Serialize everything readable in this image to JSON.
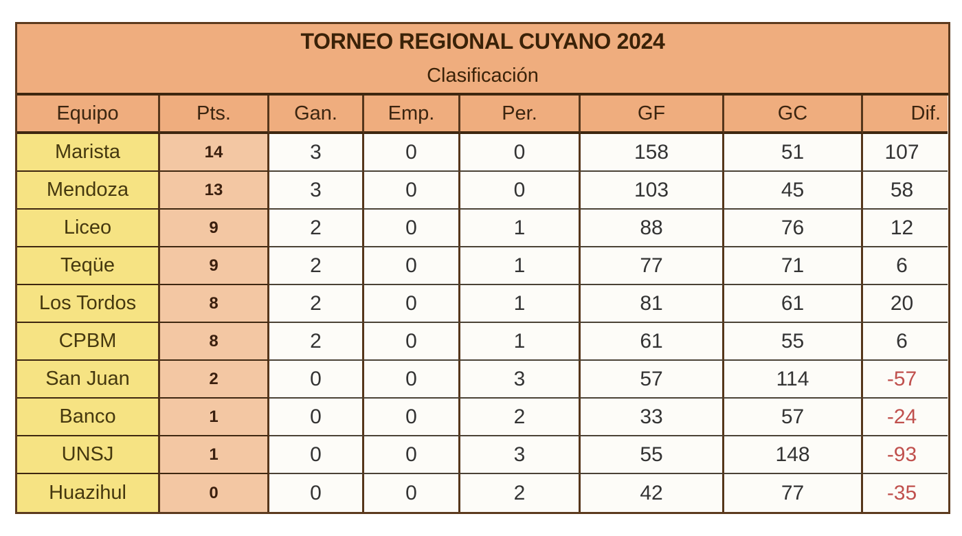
{
  "header": {
    "title": "TORNEO REGIONAL CUYANO 2024",
    "subtitle": "Clasificación"
  },
  "standings": {
    "columns": [
      "Equipo",
      "Pts.",
      "Gan.",
      "Emp.",
      "Per.",
      "GF",
      "GC",
      "Dif."
    ],
    "rows": [
      {
        "equipo": "Marista",
        "pts": "14",
        "gan": "3",
        "emp": "0",
        "per": "0",
        "gf": "158",
        "gc": "51",
        "dif": "107"
      },
      {
        "equipo": "Mendoza",
        "pts": "13",
        "gan": "3",
        "emp": "0",
        "per": "0",
        "gf": "103",
        "gc": "45",
        "dif": "58"
      },
      {
        "equipo": "Liceo",
        "pts": "9",
        "gan": "2",
        "emp": "0",
        "per": "1",
        "gf": "88",
        "gc": "76",
        "dif": "12"
      },
      {
        "equipo": "Teqüe",
        "pts": "9",
        "gan": "2",
        "emp": "0",
        "per": "1",
        "gf": "77",
        "gc": "71",
        "dif": "6"
      },
      {
        "equipo": "Los Tordos",
        "pts": "8",
        "gan": "2",
        "emp": "0",
        "per": "1",
        "gf": "81",
        "gc": "61",
        "dif": "20"
      },
      {
        "equipo": "CPBM",
        "pts": "8",
        "gan": "2",
        "emp": "0",
        "per": "1",
        "gf": "61",
        "gc": "55",
        "dif": "6"
      },
      {
        "equipo": "San Juan",
        "pts": "2",
        "gan": "0",
        "emp": "0",
        "per": "3",
        "gf": "57",
        "gc": "114",
        "dif": "-57"
      },
      {
        "equipo": "Banco",
        "pts": "1",
        "gan": "0",
        "emp": "0",
        "per": "2",
        "gf": "33",
        "gc": "57",
        "dif": "-24"
      },
      {
        "equipo": "UNSJ",
        "pts": "1",
        "gan": "0",
        "emp": "0",
        "per": "3",
        "gf": "55",
        "gc": "148",
        "dif": "-93"
      },
      {
        "equipo": "Huazihul",
        "pts": "0",
        "gan": "0",
        "emp": "0",
        "per": "2",
        "gf": "42",
        "gc": "77",
        "dif": "-35"
      }
    ]
  },
  "colors": {
    "header_bg": "#efad7e",
    "points_bg": "#f3c7a3",
    "team_bg": "#f6e383",
    "cell_bg": "#fdfcf8",
    "negative_diff_text": "#c0504d",
    "border_brown": "#5c3a1e",
    "row_border": "#4a4236",
    "dark_text": "#3a2208"
  },
  "chart_data": {
    "type": "table",
    "title": "TORNEO REGIONAL CUYANO 2024",
    "subtitle": "Clasificación",
    "columns": [
      "Equipo",
      "Pts.",
      "Gan.",
      "Emp.",
      "Per.",
      "GF",
      "GC",
      "Dif."
    ],
    "rows": [
      [
        "Marista",
        14,
        3,
        0,
        0,
        158,
        51,
        107
      ],
      [
        "Mendoza",
        13,
        3,
        0,
        0,
        103,
        45,
        58
      ],
      [
        "Liceo",
        9,
        2,
        0,
        1,
        88,
        76,
        12
      ],
      [
        "Teqüe",
        9,
        2,
        0,
        1,
        77,
        71,
        6
      ],
      [
        "Los Tordos",
        8,
        2,
        0,
        1,
        81,
        61,
        20
      ],
      [
        "CPBM",
        8,
        2,
        0,
        1,
        61,
        55,
        6
      ],
      [
        "San Juan",
        2,
        0,
        0,
        3,
        57,
        114,
        -57
      ],
      [
        "Banco",
        1,
        0,
        0,
        2,
        33,
        57,
        -24
      ],
      [
        "UNSJ",
        1,
        0,
        0,
        3,
        55,
        148,
        -93
      ],
      [
        "Huazihul",
        0,
        0,
        0,
        2,
        42,
        77,
        -35
      ]
    ]
  }
}
